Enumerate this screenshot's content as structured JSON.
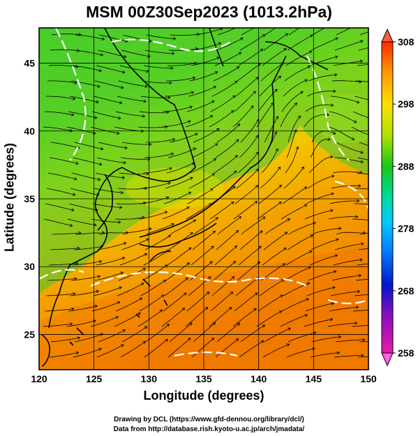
{
  "title": "MSM 00Z30Sep2023 (1013.2hPa)",
  "map": {
    "xlabel": "Longitude (degrees)",
    "ylabel": "Latitude  (degrees)",
    "lon_range": [
      120,
      150
    ],
    "lat_range": [
      22.4,
      47.6
    ],
    "lon_ticks": [
      "120",
      "125",
      "130",
      "135",
      "140",
      "145",
      "150"
    ],
    "lat_ticks": [
      "25",
      "30",
      "35",
      "40",
      "45"
    ],
    "field": "temperature (K) with streamlines and coastlines"
  },
  "colorbar": {
    "min": 258,
    "max": 308,
    "ticks": [
      "258",
      "268",
      "278",
      "288",
      "298",
      "308"
    ],
    "colors": [
      "#e81aa8",
      "#0018c8",
      "#00c8ff",
      "#18c818",
      "#ffe000",
      "#ff2a00"
    ]
  },
  "credits": {
    "line1": "Drawing by DCL (https://www.gfd-dennou.org/library/dcl/)",
    "line2": "Data from http://database.rish.kyoto-u.ac.jp/arch/jmadata/"
  }
}
